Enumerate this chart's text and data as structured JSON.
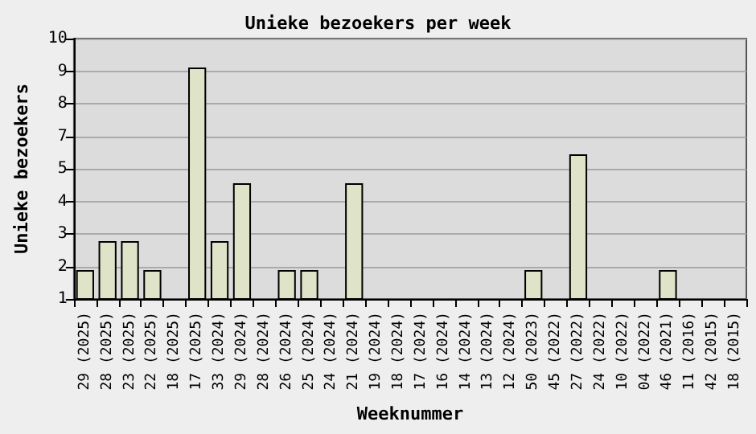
{
  "chart_data": {
    "type": "bar",
    "title": "Unieke bezoekers per week",
    "xlabel": "Weeknummer",
    "ylabel": "Unieke bezoekers",
    "categories": [
      "29 (2025)",
      "28 (2025)",
      "23 (2025)",
      "22 (2025)",
      "18 (2025)",
      "17 (2025)",
      "33 (2024)",
      "29 (2024)",
      "28 (2024)",
      "26 (2024)",
      "25 (2024)",
      "24 (2024)",
      "21 (2024)",
      "19 (2024)",
      "18 (2024)",
      "17 (2024)",
      "16 (2024)",
      "14 (2024)",
      "13 (2024)",
      "12 (2024)",
      "50 (2023)",
      "45 (2022)",
      "27 (2022)",
      "24 (2022)",
      "10 (2022)",
      "04 (2022)",
      "46 (2021)",
      "11 (2016)",
      "42 (2015)",
      "18 (2015)"
    ],
    "values": [
      2,
      3,
      3,
      2,
      1,
      9,
      3,
      5,
      1,
      2,
      2,
      1,
      5,
      1,
      1,
      1,
      1,
      1,
      1,
      1,
      2,
      1,
      6,
      1,
      1,
      1,
      2,
      1,
      1,
      1
    ],
    "color": "#dfe3c8",
    "ylim": [
      1,
      10
    ],
    "yticks": [
      1,
      {
        "value": 2.125,
        "label": "2"
      },
      {
        "value": 3.25,
        "label": "3"
      },
      {
        "value": 4.375,
        "label": "4"
      },
      {
        "value": 5.5,
        "label": "5"
      },
      {
        "value": 6.625,
        "label": "7"
      },
      {
        "value": 7.75,
        "label": "8"
      },
      {
        "value": 8.875,
        "label": "9"
      },
      10
    ],
    "grid": "y"
  }
}
